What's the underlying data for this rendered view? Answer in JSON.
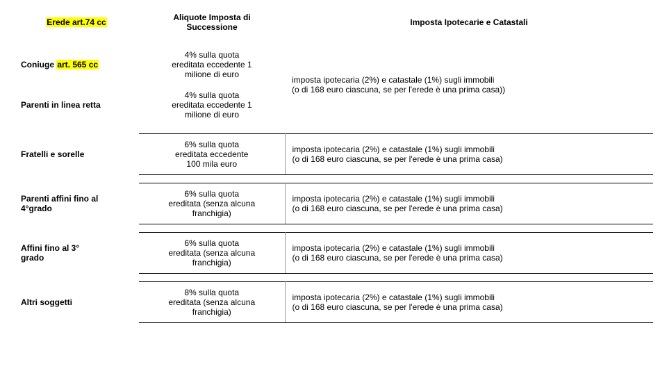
{
  "header": {
    "col1": "Erede art.74 cc",
    "col2_line1": "Aliquote Imposta di",
    "col2_line2": "Successione",
    "col3": "Imposta Ipotecarie e Catastali"
  },
  "rows": {
    "coniuge": {
      "label": "Coniuge art. 565 cc",
      "rate_l1": "4% sulla quota",
      "rate_l2": "ereditata eccedente 1",
      "rate_l3": "milione di euro"
    },
    "parenti_linea": {
      "label": "Parenti in linea retta",
      "rate_l1": "4% sulla quota",
      "rate_l2": "ereditata eccedente 1",
      "rate_l3": "milione di euro"
    },
    "merged_desc_l1": "imposta ipotecaria (2%) e catastale (1%) sugli immobili",
    "merged_desc_l2": "(o di 168 euro ciascuna, se per l'erede è una prima casa))",
    "fratelli": {
      "label": "Fratelli e sorelle",
      "rate_l1": "6% sulla quota",
      "rate_l2": "ereditata eccedente",
      "rate_l3": "100 mila euro",
      "desc_l1": "imposta ipotecaria (2%) e catastale (1%) sugli immobili",
      "desc_l2": "(o di 168 euro ciascuna, se per l'erede è una prima casa)"
    },
    "affini4": {
      "label_l1": "Parenti affini fino al",
      "label_l2": "4°grado",
      "rate_l1": "6% sulla quota",
      "rate_l2": "ereditata (senza alcuna",
      "rate_l3": "franchigia)",
      "desc_l1": "imposta ipotecaria (2%) e catastale (1%) sugli immobili",
      "desc_l2": "(o di 168 euro ciascuna, se per l'erede è una prima casa)"
    },
    "affini3": {
      "label_l1": "Affini fino al 3°",
      "label_l2": "grado",
      "rate_l1": "6% sulla quota",
      "rate_l2": "ereditata (senza alcuna",
      "rate_l3": "franchigia)",
      "desc_l1": "imposta ipotecaria (2%) e catastale (1%) sugli immobili",
      "desc_l2": "(o di 168 euro ciascuna, se per l'erede è una prima casa)"
    },
    "altri": {
      "label": "Altri soggetti",
      "rate_l1": "8% sulla quota",
      "rate_l2": "ereditata (senza alcuna",
      "rate_l3": "franchigia)",
      "desc_l1": "imposta ipotecaria (2%) e catastale (1%) sugli immobili",
      "desc_l2": "(o di 168 euro ciascuna, se per l'erede è una prima casa)"
    }
  }
}
